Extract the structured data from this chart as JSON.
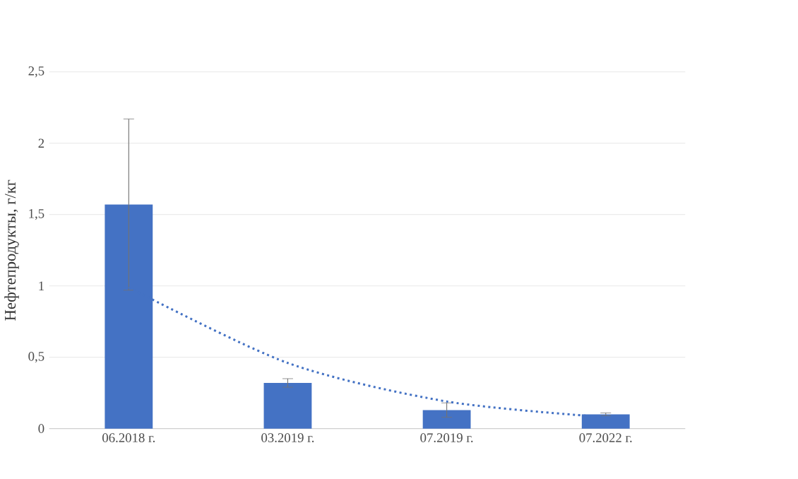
{
  "chart_data": {
    "type": "bar",
    "ylabel": "Нефтепродукты, г/кг",
    "categories": [
      "06.2018 г.",
      "03.2019 г.",
      "07.2019 г.",
      "07.2022 г."
    ],
    "series": [
      {
        "color": "#4472c4",
        "values": [
          1.57,
          0.32,
          0.13,
          0.1
        ],
        "errors": [
          0.6,
          0.03,
          0.05,
          0.01
        ]
      },
      {
        "type": "line",
        "color": "#4472c4",
        "line_style": "dotted",
        "values": [
          0.99,
          0.46,
          0.19,
          0.08
        ]
      }
    ],
    "ylim": [
      0,
      2.5
    ],
    "yticks": [
      0,
      {
        "value": 0.5,
        "label": "0,5"
      },
      1,
      {
        "value": 1.5,
        "label": "1,5"
      },
      2,
      {
        "value": 2.5,
        "label": "2,5"
      }
    ],
    "grid": "y"
  }
}
